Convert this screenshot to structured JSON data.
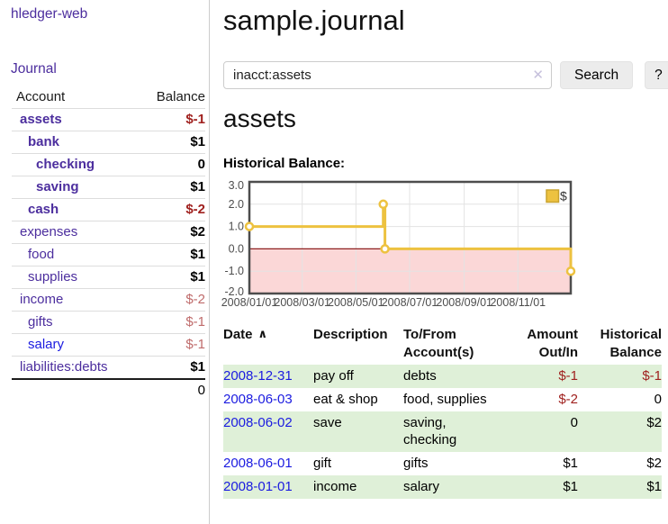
{
  "brand": "hledger-web",
  "nav": {
    "journal_label": "Journal"
  },
  "sidebar": {
    "headers": {
      "account": "Account",
      "balance": "Balance"
    },
    "accounts": [
      {
        "name": "assets",
        "level": 0,
        "balance": "$-1",
        "bold": true,
        "name_color": "purple",
        "balance_color": "neg-strong"
      },
      {
        "name": "bank",
        "level": 1,
        "balance": "$1",
        "bold": true,
        "name_color": "purple",
        "balance_color": "default"
      },
      {
        "name": "checking",
        "level": 2,
        "balance": "0",
        "bold": true,
        "name_color": "purple",
        "balance_color": "default"
      },
      {
        "name": "saving",
        "level": 2,
        "balance": "$1",
        "bold": true,
        "name_color": "purple",
        "balance_color": "default"
      },
      {
        "name": "cash",
        "level": 1,
        "balance": "$-2",
        "bold": true,
        "name_color": "purple",
        "balance_color": "neg-strong"
      },
      {
        "name": "expenses",
        "level": 0,
        "balance": "$2",
        "bold": false,
        "name_color": "purple",
        "balance_color": "default"
      },
      {
        "name": "food",
        "level": 1,
        "balance": "$1",
        "bold": false,
        "name_color": "purple",
        "balance_color": "default"
      },
      {
        "name": "supplies",
        "level": 1,
        "balance": "$1",
        "bold": false,
        "name_color": "purple",
        "balance_color": "default"
      },
      {
        "name": "income",
        "level": 0,
        "balance": "$-2",
        "bold": false,
        "name_color": "purple",
        "balance_color": "neg-soft"
      },
      {
        "name": "gifts",
        "level": 1,
        "balance": "$-1",
        "bold": false,
        "name_color": "purple",
        "balance_color": "neg-soft"
      },
      {
        "name": "salary",
        "level": 1,
        "balance": "$-1",
        "bold": false,
        "name_color": "blue",
        "balance_color": "neg-soft"
      },
      {
        "name": "liabilities:debts",
        "level": 0,
        "balance": "$1",
        "bold": false,
        "name_color": "purple",
        "balance_color": "default"
      }
    ],
    "total": "0"
  },
  "header": {
    "title": "sample.journal"
  },
  "search": {
    "value": "inacct:assets",
    "clear_icon": "✕",
    "button_label": "Search",
    "help_label": "?"
  },
  "account_page": {
    "heading": "assets",
    "chart_title": "Historical Balance:"
  },
  "chart_data": {
    "type": "line",
    "style": "step",
    "title": "Historical Balance:",
    "series": [
      {
        "name": "$",
        "points": [
          [
            "2008-01-01",
            1
          ],
          [
            "2008-06-01",
            2
          ],
          [
            "2008-06-03",
            0
          ],
          [
            "2008-12-31",
            -1
          ]
        ]
      }
    ],
    "x_range": [
      "2008-01-01",
      "2008-12-31"
    ],
    "ylim": [
      -2,
      3
    ],
    "yticks": [
      {
        "value": 3,
        "label": "3.0"
      },
      {
        "value": 2,
        "label": "2.0"
      },
      {
        "value": 1,
        "label": "1.0"
      },
      {
        "value": 0,
        "label": "0.0"
      },
      {
        "value": -1,
        "label": "-1.0"
      },
      {
        "value": -2,
        "label": "-2.0"
      }
    ],
    "xticks": [
      {
        "value": "2008-01-01",
        "label": "2008/01/01"
      },
      {
        "value": "2008-03-01",
        "label": "2008/03/01"
      },
      {
        "value": "2008-05-01",
        "label": "2008/05/01"
      },
      {
        "value": "2008-07-01",
        "label": "2008/07/01"
      },
      {
        "value": "2008-09-01",
        "label": "2008/09/01"
      },
      {
        "value": "2008-11-01",
        "label": "2008/11/01"
      }
    ],
    "legend": {
      "label": "$",
      "position": "top-right"
    },
    "negative_region": true,
    "grid": true
  },
  "register": {
    "columns": [
      "Date",
      "Description",
      "To/From\nAccount(s)",
      "Amount\nOut/In",
      "Historical\nBalance"
    ],
    "sort_icon": "∧",
    "rows": [
      {
        "date": "2008-12-31",
        "description": "pay off",
        "accounts": "debts",
        "amount": "$-1",
        "amount_negative": true,
        "balance": "$-1",
        "balance_negative": true
      },
      {
        "date": "2008-06-03",
        "description": "eat & shop",
        "accounts": "food, supplies",
        "amount": "$-2",
        "amount_negative": true,
        "balance": "0",
        "balance_negative": false
      },
      {
        "date": "2008-06-02",
        "description": "save",
        "accounts": "saving,\nchecking",
        "amount": "0",
        "amount_negative": false,
        "balance": "$2",
        "balance_negative": false
      },
      {
        "date": "2008-06-01",
        "description": "gift",
        "accounts": "gifts",
        "amount": "$1",
        "amount_negative": false,
        "balance": "$2",
        "balance_negative": false
      },
      {
        "date": "2008-01-01",
        "description": "income",
        "accounts": "salary",
        "amount": "$1",
        "amount_negative": false,
        "balance": "$1",
        "balance_negative": false
      }
    ]
  },
  "colors": {
    "accent_purple": "#4c2e9e",
    "link_blue": "#1b1be0",
    "negative_strong": "#a0211f",
    "negative_soft": "#bf6b6b",
    "row_green": "#dff0d8",
    "chart_line": "#edc240",
    "chart_line_border": "#c9a32f",
    "chart_negative_bg": "#fbd7d7",
    "chart_zero_line": "#8f2020",
    "chart_grid": "#e3e3e3",
    "chart_border": "#4d4d4d",
    "chart_text": "#4d4d4d"
  }
}
